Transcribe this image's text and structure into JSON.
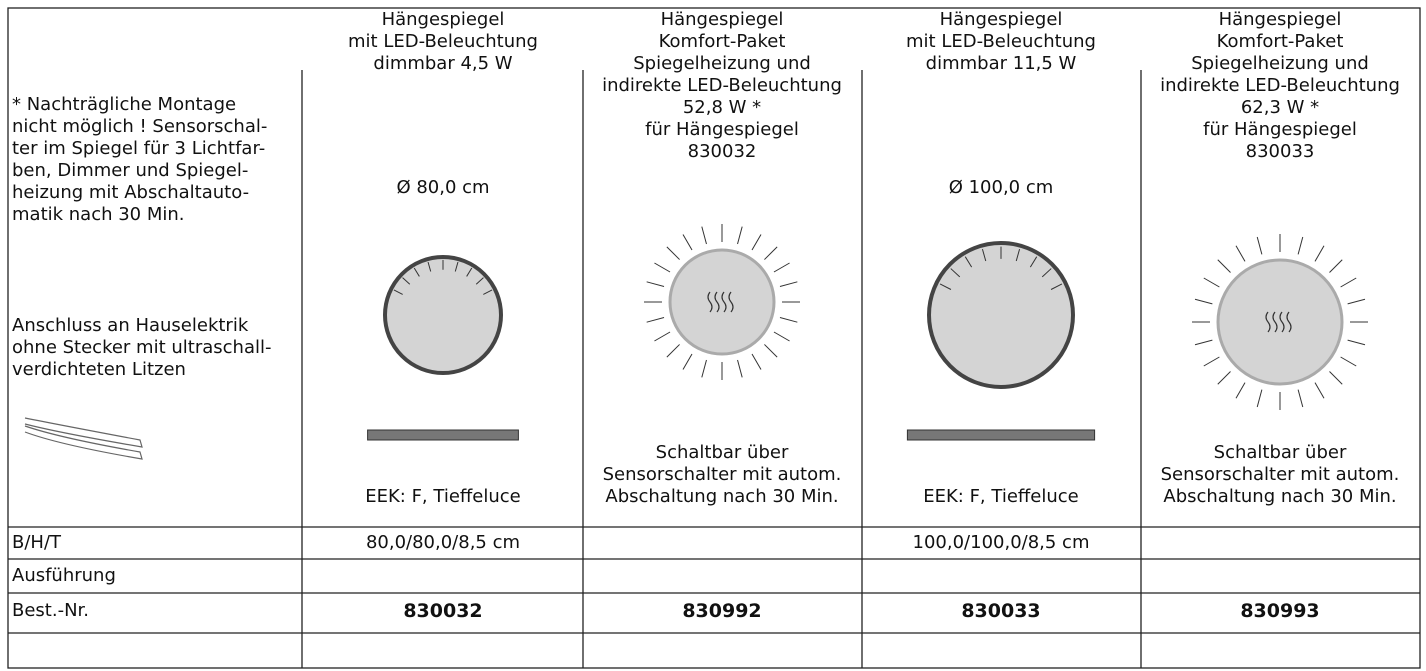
{
  "intro": {
    "lines": [
      "* Nachträgliche Montage",
      "nicht möglich ! Sensorschal-",
      "ter im Spiegel für 3 Lichtfar-",
      "ben, Dimmer und Spiegel-",
      "heizung mit Abschaltauto-",
      "matik nach 30 Min."
    ],
    "connection": [
      "Anschluss an Hauselektrik",
      "ohne Stecker mit ultraschall-",
      "verdichteten Litzen"
    ]
  },
  "products": [
    {
      "title": [
        "Hängespiegel",
        "mit LED-Beleuchtung",
        "dimmbar 4,5 W"
      ],
      "diameter": "Ø 80,0 cm",
      "note": [
        "EEK: F, Tieffeluce"
      ],
      "dimensions": "80,0/80,0/8,5 cm",
      "order_no": "830032"
    },
    {
      "title": [
        "Hängespiegel",
        "Komfort-Paket",
        "Spiegelheizung und",
        "indirekte LED-Beleuchtung",
        "52,8 W *",
        "für Hängespiegel",
        "830032"
      ],
      "note": [
        "Schaltbar über",
        "Sensorschalter mit autom.",
        "Abschaltung nach 30 Min."
      ],
      "order_no": "830992"
    },
    {
      "title": [
        "Hängespiegel",
        "mit LED-Beleuchtung",
        "dimmbar 11,5 W"
      ],
      "diameter": "Ø 100,0 cm",
      "note": [
        "EEK: F, Tieffeluce"
      ],
      "dimensions": "100,0/100,0/8,5 cm",
      "order_no": "830033"
    },
    {
      "title": [
        "Hängespiegel",
        "Komfort-Paket",
        "Spiegelheizung und",
        "indirekte LED-Beleuchtung",
        "62,3 W *",
        "für Hängespiegel",
        "830033"
      ],
      "note": [
        "Schaltbar über",
        "Sensorschalter mit autom.",
        "Abschaltung nach 30 Min."
      ],
      "order_no": "830993"
    }
  ],
  "row_labels": [
    "B/H/T",
    "Ausführung",
    "Best.-Nr."
  ]
}
